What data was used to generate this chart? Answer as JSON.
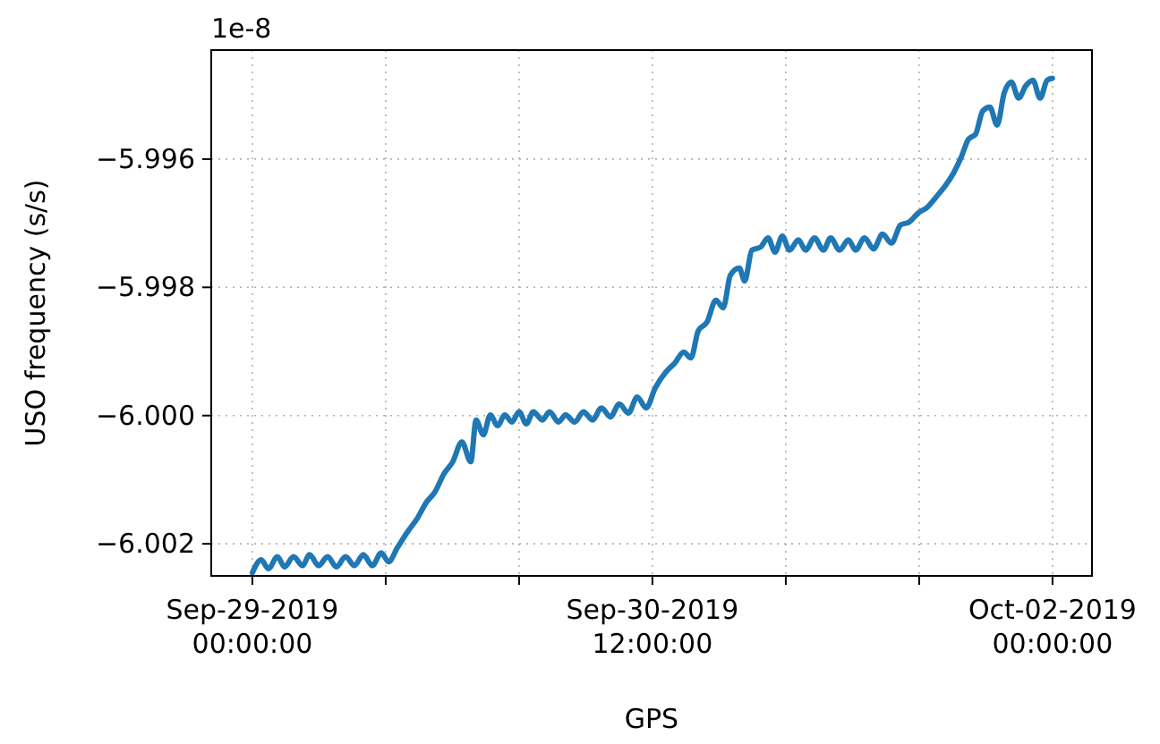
{
  "chart_data": {
    "type": "line",
    "xlabel": "GPS",
    "ylabel": "USO frequency (s/s)",
    "annotations": [
      "1e-8"
    ],
    "xlim": [
      "2019-09-28T20:18",
      "2019-10-02T03:33"
    ],
    "ylim": [
      -6.0025,
      -5.9943
    ],
    "xticks": [
      {
        "value": "2019-09-29T00:00",
        "label": "Sep-29-2019\n00:00:00"
      },
      {
        "value": "2019-09-29T12:00",
        "label": null
      },
      {
        "value": "2019-09-30T00:00",
        "label": null
      },
      {
        "value": "2019-09-30T12:00",
        "label": "Sep-30-2019\n12:00:00"
      },
      {
        "value": "2019-10-01T00:00",
        "label": null
      },
      {
        "value": "2019-10-01T12:00",
        "label": null
      },
      {
        "value": "2019-10-02T00:00",
        "label": "Oct-02-2019\n00:00:00"
      }
    ],
    "yticks": [
      {
        "value": -5.996,
        "label": "−5.996"
      },
      {
        "value": -5.998,
        "label": "−5.998"
      },
      {
        "value": -6.0,
        "label": "−6.000"
      },
      {
        "value": -6.002,
        "label": "−6.002"
      }
    ],
    "grid": true,
    "line_style": "solid",
    "marker": "none",
    "series": [
      {
        "color": "#1f77b4",
        "x": [
          "2019-09-29T00:00",
          "2019-09-29T00:48",
          "2019-09-29T01:27",
          "2019-09-29T02:15",
          "2019-09-29T02:54",
          "2019-09-29T03:42",
          "2019-09-29T04:31",
          "2019-09-29T05:09",
          "2019-09-29T05:58",
          "2019-09-29T06:46",
          "2019-09-29T07:34",
          "2019-09-29T08:23",
          "2019-09-29T09:11",
          "2019-09-29T09:59",
          "2019-09-29T10:48",
          "2019-09-29T11:36",
          "2019-09-29T12:15",
          "2019-09-29T13:03",
          "2019-09-29T14:01",
          "2019-09-29T14:49",
          "2019-09-29T15:38",
          "2019-09-29T16:26",
          "2019-09-29T17:14",
          "2019-09-29T18:02",
          "2019-09-29T18:51",
          "2019-09-29T19:39",
          "2019-09-29T20:08",
          "2019-09-29T20:47",
          "2019-09-29T21:25",
          "2019-09-29T22:04",
          "2019-09-29T22:43",
          "2019-09-29T23:21",
          "2019-09-30T00:00",
          "2019-09-30T00:39",
          "2019-09-30T01:17",
          "2019-09-30T02:06",
          "2019-09-30T02:44",
          "2019-09-30T03:33",
          "2019-09-30T04:11",
          "2019-09-30T05:00",
          "2019-09-30T05:48",
          "2019-09-30T06:36",
          "2019-09-30T07:25",
          "2019-09-30T08:13",
          "2019-09-30T09:01",
          "2019-09-30T09:50",
          "2019-09-30T10:38",
          "2019-09-30T11:26",
          "2019-09-30T12:15",
          "2019-09-30T13:13",
          "2019-09-30T14:01",
          "2019-09-30T14:49",
          "2019-09-30T15:28",
          "2019-09-30T16:07",
          "2019-09-30T16:55",
          "2019-09-30T17:43",
          "2019-09-30T18:22",
          "2019-09-30T19:01",
          "2019-09-30T19:49",
          "2019-09-30T20:18",
          "2019-09-30T20:57",
          "2019-09-30T21:45",
          "2019-09-30T22:24",
          "2019-09-30T23:02",
          "2019-09-30T23:41",
          "2019-10-01T00:20",
          "2019-10-01T01:08",
          "2019-10-01T01:47",
          "2019-10-01T02:35",
          "2019-10-01T03:23",
          "2019-10-01T04:02",
          "2019-10-01T04:50",
          "2019-10-01T05:38",
          "2019-10-01T06:17",
          "2019-10-01T07:05",
          "2019-10-01T07:54",
          "2019-10-01T08:42",
          "2019-10-01T09:30",
          "2019-10-01T10:19",
          "2019-10-01T11:07",
          "2019-10-01T11:55",
          "2019-10-01T12:44",
          "2019-10-01T13:32",
          "2019-10-01T14:20",
          "2019-10-01T15:09",
          "2019-10-01T15:47",
          "2019-10-01T16:26",
          "2019-10-01T17:05",
          "2019-10-01T17:43",
          "2019-10-01T18:22",
          "2019-10-01T19:01",
          "2019-10-01T19:39",
          "2019-10-01T20:18",
          "2019-10-01T20:57",
          "2019-10-01T21:35",
          "2019-10-01T22:14",
          "2019-10-01T22:53",
          "2019-10-01T23:31",
          "2019-10-02T00:00"
        ],
        "values": [
          -6.00245,
          -6.00225,
          -6.00239,
          -6.0022,
          -6.00236,
          -6.0022,
          -6.00234,
          -6.00217,
          -6.00234,
          -6.0022,
          -6.00236,
          -6.0022,
          -6.00234,
          -6.00217,
          -6.00234,
          -6.00214,
          -6.00228,
          -6.00206,
          -6.0018,
          -6.00161,
          -6.00136,
          -6.00119,
          -6.00091,
          -6.00072,
          -6.00041,
          -6.00072,
          -6.00007,
          -6.0003,
          -5.99999,
          -6.00016,
          -5.99999,
          -6.0001,
          -5.99994,
          -6.00013,
          -5.99994,
          -6.00007,
          -5.99994,
          -6.0001,
          -5.99999,
          -6.0001,
          -5.99994,
          -6.00007,
          -5.99988,
          -6.00002,
          -5.99982,
          -5.99996,
          -5.99971,
          -5.99988,
          -5.99957,
          -5.99932,
          -5.99918,
          -5.99901,
          -5.9991,
          -5.99868,
          -5.99854,
          -5.9982,
          -5.99832,
          -5.99781,
          -5.9977,
          -5.9979,
          -5.99742,
          -5.99737,
          -5.99723,
          -5.99745,
          -5.9972,
          -5.99742,
          -5.99726,
          -5.99742,
          -5.99723,
          -5.99742,
          -5.99723,
          -5.99742,
          -5.99726,
          -5.99742,
          -5.99723,
          -5.9974,
          -5.99717,
          -5.99731,
          -5.99703,
          -5.99698,
          -5.99684,
          -5.99675,
          -5.99659,
          -5.99642,
          -5.9962,
          -5.99597,
          -5.99569,
          -5.99561,
          -5.99525,
          -5.99519,
          -5.99547,
          -5.99497,
          -5.9948,
          -5.99505,
          -5.99486,
          -5.99477,
          -5.99505,
          -5.99477,
          -5.99474
        ]
      }
    ]
  }
}
